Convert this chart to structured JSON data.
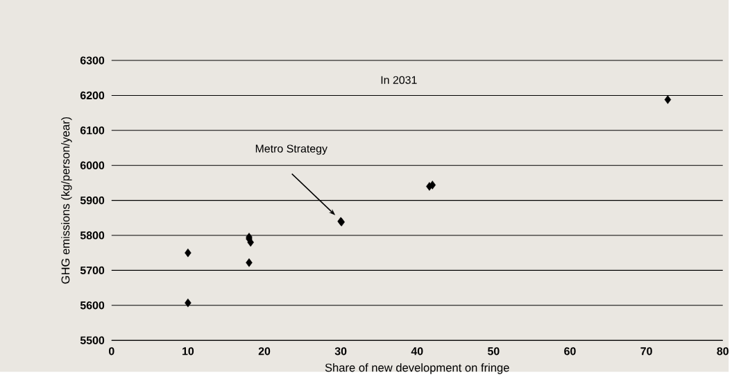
{
  "chart_data": {
    "type": "scatter",
    "xlabel": "Share of new development on fringe",
    "ylabel": "GHG emissions (kg/person/year)",
    "x": [
      10,
      10,
      18,
      18,
      18.2,
      18,
      30,
      30.1,
      41.6,
      42,
      72.8
    ],
    "values": [
      5750,
      5607,
      5795,
      5790,
      5780,
      5722,
      5840,
      5838,
      5940,
      5944,
      6188
    ],
    "color": "#000000",
    "marker": "diamond",
    "grid": "y",
    "xlim": [
      0,
      80
    ],
    "xticks": [
      0,
      10,
      20,
      30,
      40,
      50,
      60,
      70,
      80
    ],
    "ylim": [
      5500,
      6300
    ],
    "yticks": [
      5500,
      5600,
      5700,
      5800,
      5900,
      6000,
      6100,
      6200,
      6300
    ],
    "annotations": [
      "In 2031",
      "Metro Strategy"
    ]
  }
}
